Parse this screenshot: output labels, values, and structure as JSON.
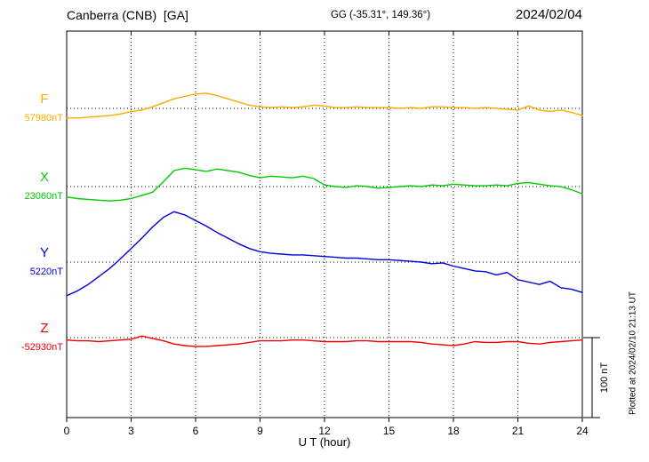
{
  "header": {
    "title": "Canberra (CNB)  [GA]",
    "coords": "GG (-35.31°, 149.36°)",
    "date": "2024/02/04"
  },
  "footer_note": "Plotted at 2024/02/10 21:13 UT",
  "chart_data": {
    "type": "line",
    "title": "Canberra (CNB)  [GA]",
    "subtitle": "GG (-35.31°, 149.36°)",
    "date": "2024/02/04",
    "xlabel": "U T (hour)",
    "xlim": [
      0,
      24
    ],
    "x_ticks": [
      0,
      3,
      6,
      9,
      12,
      15,
      18,
      21,
      24
    ],
    "x_step_hours": 0.5,
    "grid": "dotted vertical at 3h intervals, dotted horizontal baseline per trace",
    "legend_position": "left margin labels",
    "scale_bar": {
      "label": "100 nT",
      "nT": 100
    },
    "plotted_at": "Plotted at 2024/02/10 21:13 UT",
    "series": [
      {
        "name": "F",
        "baseline_label": "57980nT",
        "baseline_nT": 57980,
        "color": "#ffaa00",
        "offsets_nT": [
          -12,
          -12,
          -11,
          -10,
          -9,
          -7,
          -4,
          -2,
          2,
          7,
          12,
          15,
          18,
          19,
          16,
          12,
          8,
          4,
          2,
          1,
          2,
          1,
          2,
          4,
          3,
          1,
          1,
          2,
          1,
          1,
          1,
          0,
          1,
          0,
          2,
          2,
          1,
          1,
          0,
          1,
          0,
          -1,
          -2,
          3,
          -2,
          -4,
          -2,
          -5,
          -9
        ]
      },
      {
        "name": "X",
        "baseline_label": "23060nT",
        "baseline_nT": 23060,
        "color": "#00cc00",
        "offsets_nT": [
          -13,
          -15,
          -16,
          -17,
          -18,
          -17,
          -15,
          -11,
          -7,
          6,
          20,
          23,
          21,
          19,
          22,
          20,
          18,
          14,
          11,
          13,
          12,
          11,
          13,
          10,
          2,
          0,
          -1,
          1,
          0,
          -2,
          -1,
          0,
          1,
          0,
          2,
          1,
          3,
          2,
          1,
          1,
          2,
          1,
          4,
          5,
          3,
          1,
          0,
          -4,
          -9
        ]
      },
      {
        "name": "Y",
        "baseline_label": "5220nT",
        "baseline_nT": 5220,
        "color": "#0000dd",
        "offsets_nT": [
          -42,
          -36,
          -28,
          -18,
          -8,
          4,
          17,
          30,
          44,
          56,
          63,
          59,
          52,
          45,
          37,
          30,
          23,
          17,
          13,
          11,
          10,
          9,
          9,
          8,
          7,
          6,
          5,
          5,
          4,
          3,
          3,
          2,
          1,
          0,
          -2,
          -1,
          -5,
          -8,
          -11,
          -12,
          -16,
          -13,
          -22,
          -25,
          -28,
          -24,
          -32,
          -34,
          -38
        ]
      },
      {
        "name": "Z",
        "baseline_label": "-52930nT",
        "baseline_nT": -52930,
        "color": "#ee0000",
        "offsets_nT": [
          -3,
          -4,
          -4,
          -5,
          -4,
          -3,
          -2,
          2,
          -1,
          -4,
          -8,
          -10,
          -11,
          -11,
          -10,
          -9,
          -8,
          -6,
          -4,
          -4,
          -4,
          -3,
          -3,
          -4,
          -5,
          -5,
          -5,
          -4,
          -4,
          -5,
          -5,
          -5,
          -5,
          -6,
          -8,
          -9,
          -10,
          -8,
          -5,
          -6,
          -6,
          -5,
          -5,
          -7,
          -8,
          -6,
          -5,
          -4,
          -3
        ]
      }
    ]
  }
}
